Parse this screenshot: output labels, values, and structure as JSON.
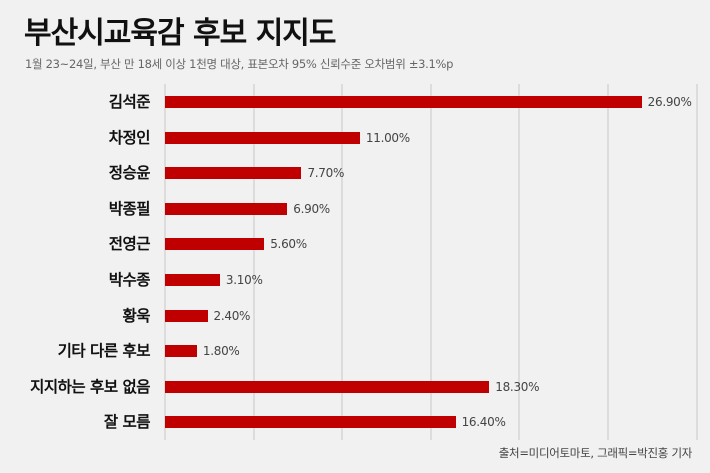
{
  "header": {
    "title": "부산시교육감 후보 지지도",
    "subtitle": "1월 23~24일, 부산 만 18세 이상 1천명 대상, 표본오차 95% 신뢰수준 오차범위 ±3.1%p"
  },
  "footer": {
    "source": "출처=미디어토마토, 그래픽=박진홍 기자"
  },
  "colors": {
    "bar": "#c00000",
    "background": "#f1f1f1",
    "grid": "#dcdcdc"
  },
  "chart_data": {
    "type": "bar",
    "orientation": "horizontal",
    "title": "부산시교육감 후보 지지도",
    "subtitle": "1월 23~24일, 부산 만 18세 이상 1천명 대상, 표본오차 95% 신뢰수준 오차범위 ±3.1%p",
    "categories": [
      "김석준",
      "차정인",
      "정승윤",
      "박종필",
      "전영근",
      "박수종",
      "황욱",
      "기타 다른 후보",
      "지지하는 후보 없음",
      "잘 모름"
    ],
    "values": [
      26.9,
      11.0,
      7.7,
      6.9,
      5.6,
      3.1,
      2.4,
      1.8,
      18.3,
      16.4
    ],
    "value_labels": [
      "26.90%",
      "11.00%",
      "7.70%",
      "6.90%",
      "5.60%",
      "3.10%",
      "2.40%",
      "1.80%",
      "18.30%",
      "16.40%"
    ],
    "xlabel": "",
    "ylabel": "",
    "xlim": [
      0,
      30
    ],
    "grid": true,
    "grid_step": 5,
    "legend": "none",
    "source": "출처=미디어토마토, 그래픽=박진홍 기자"
  }
}
